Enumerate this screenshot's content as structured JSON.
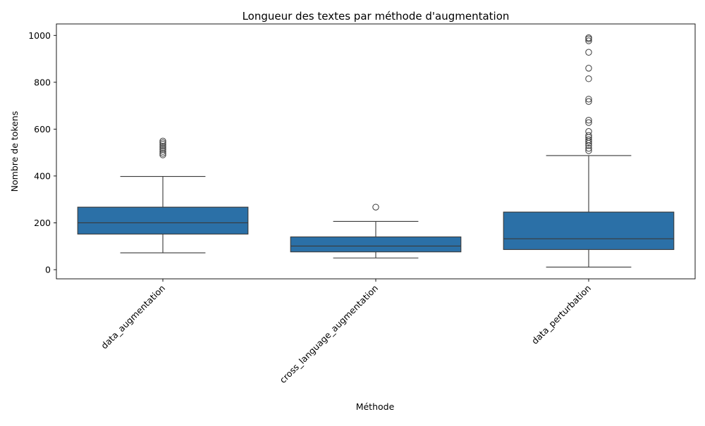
{
  "chart_data": {
    "type": "box",
    "title": "Longueur des textes par méthode d'augmentation",
    "xlabel": "Méthode",
    "ylabel": "Nombre de tokens",
    "categories": [
      "data_augmentation",
      "cross_language_augmentation",
      "data_perturbation"
    ],
    "ylim": [
      -40,
      1040
    ],
    "yticks": [
      0,
      200,
      400,
      600,
      800,
      1000
    ],
    "box_color": "#2b70a7",
    "line_color": "#3a3a3a",
    "boxes": [
      {
        "category": "data_augmentation",
        "whisker_low": 72,
        "q1": 152,
        "median": 200,
        "q3": 267,
        "whisker_high": 398,
        "outliers": [
          490,
          497,
          505,
          513,
          520,
          527,
          535,
          542,
          549
        ]
      },
      {
        "category": "cross_language_augmentation",
        "whisker_low": 50,
        "q1": 76,
        "median": 101,
        "q3": 140,
        "whisker_high": 206,
        "outliers": [
          267
        ]
      },
      {
        "category": "data_perturbation",
        "whisker_low": 11,
        "q1": 86,
        "median": 132,
        "q3": 246,
        "whisker_high": 487,
        "outliers": [
          508,
          518,
          530,
          540,
          548,
          555,
          565,
          573,
          590,
          628,
          638,
          718,
          728,
          815,
          860,
          928,
          977,
          985,
          990
        ]
      }
    ]
  }
}
